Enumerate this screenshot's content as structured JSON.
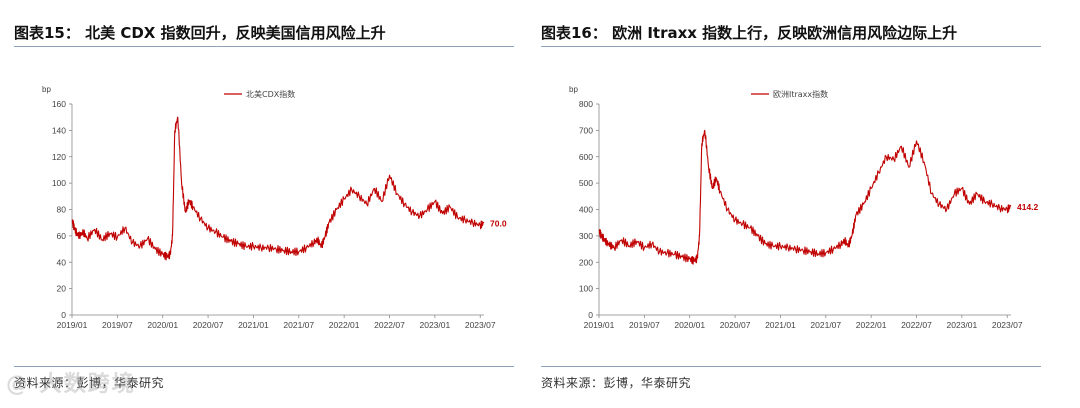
{
  "watermark": "@ 大数跨境",
  "chart_data": [
    {
      "type": "line",
      "title": "图表15： 北美 CDX 指数回升，反映美国信用风险上升",
      "source": "资料来源：彭博，华泰研究",
      "ylabel": "bp",
      "ylim": [
        0,
        160
      ],
      "yticks": [
        0,
        20,
        40,
        60,
        80,
        100,
        120,
        140,
        160
      ],
      "x_ticks": [
        "2019/01",
        "2019/07",
        "2020/01",
        "2020/07",
        "2021/01",
        "2021/07",
        "2022/01",
        "2022/07",
        "2023/01",
        "2023/07"
      ],
      "series": [
        {
          "name": "北美CDX指数",
          "color": "#c00000",
          "x": [
            0,
            0.3,
            0.6,
            1,
            1.5,
            2,
            3,
            4,
            5,
            6,
            7,
            8,
            9,
            10,
            11,
            12,
            12.6,
            13,
            13.3,
            13.6,
            14,
            14.5,
            15,
            15.5,
            16,
            17,
            18,
            19,
            20,
            21,
            22,
            23,
            24,
            25,
            26,
            27,
            28,
            29,
            30,
            31,
            32,
            32.5,
            33,
            33.5,
            34,
            35,
            36,
            37,
            38,
            39,
            40,
            41,
            42,
            43,
            44,
            45,
            46,
            47,
            48,
            49,
            50,
            51,
            52,
            53,
            54,
            54.5
          ],
          "values": [
            72,
            66,
            62,
            60,
            63,
            58,
            65,
            57,
            62,
            59,
            66,
            55,
            52,
            58,
            50,
            46,
            44,
            46,
            60,
            140,
            150,
            100,
            78,
            87,
            82,
            73,
            66,
            63,
            59,
            56,
            54,
            52,
            52,
            51,
            51,
            50,
            49,
            48,
            48,
            51,
            55,
            57,
            52,
            60,
            70,
            80,
            88,
            95,
            90,
            84,
            96,
            86,
            106,
            92,
            84,
            78,
            75,
            80,
            86,
            77,
            82,
            74,
            72,
            70,
            68,
            70
          ],
          "end_label": "70.0"
        }
      ]
    },
    {
      "type": "line",
      "title": "图表16： 欧洲 Itraxx 指数上行，反映欧洲信用风险边际上升",
      "source": "资料来源：彭博，华泰研究",
      "ylabel": "bp",
      "ylim": [
        0,
        800
      ],
      "yticks": [
        0,
        100,
        200,
        300,
        400,
        500,
        600,
        700,
        800
      ],
      "x_ticks": [
        "2019/01",
        "2019/07",
        "2020/01",
        "2020/07",
        "2021/01",
        "2021/07",
        "2022/01",
        "2022/07",
        "2023/01",
        "2023/07"
      ],
      "series": [
        {
          "name": "欧洲Itraxx指数",
          "color": "#c00000",
          "x": [
            0,
            0.3,
            0.6,
            1,
            1.5,
            2,
            3,
            4,
            5,
            6,
            7,
            8,
            9,
            10,
            11,
            12,
            12.6,
            13,
            13.3,
            13.6,
            14,
            14.5,
            15,
            15.5,
            16,
            17,
            18,
            19,
            20,
            21,
            22,
            23,
            24,
            25,
            26,
            27,
            28,
            29,
            30,
            31,
            32,
            32.5,
            33,
            33.5,
            34,
            35,
            36,
            37,
            38,
            39,
            40,
            41,
            42,
            43,
            44,
            45,
            46,
            47,
            48,
            49,
            50,
            51,
            52,
            53,
            54,
            54.5
          ],
          "values": [
            320,
            300,
            290,
            275,
            265,
            255,
            285,
            262,
            280,
            255,
            270,
            240,
            235,
            230,
            220,
            212,
            205,
            215,
            300,
            650,
            700,
            560,
            480,
            520,
            470,
            400,
            360,
            345,
            330,
            300,
            270,
            262,
            260,
            256,
            250,
            245,
            240,
            232,
            236,
            250,
            268,
            282,
            262,
            305,
            380,
            420,
            480,
            540,
            600,
            590,
            640,
            560,
            660,
            580,
            460,
            420,
            400,
            460,
            480,
            420,
            460,
            430,
            420,
            405,
            400,
            414.2
          ],
          "end_label": "414.2"
        }
      ]
    }
  ]
}
